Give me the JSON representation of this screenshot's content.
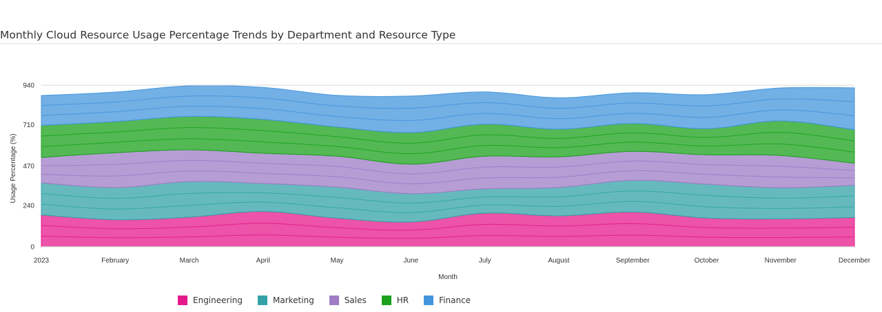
{
  "chart_data": {
    "type": "area",
    "stacked": true,
    "title": "Monthly Cloud Resource Usage Percentage Trends by Department and Resource Type",
    "xlabel": "Month",
    "ylabel": "Usage Percentage (%)",
    "ylim": [
      0,
      940
    ],
    "yticks": [
      0,
      240,
      470,
      710,
      940
    ],
    "categories": [
      "2023",
      "February",
      "March",
      "April",
      "May",
      "June",
      "July",
      "August",
      "September",
      "October",
      "November",
      "December"
    ],
    "grid": false,
    "legend_position": "bottom",
    "series": [
      {
        "name": "Engineering",
        "color": "#e6198c",
        "values": [
          185,
          157,
          172,
          205,
          166,
          144,
          195,
          180,
          202,
          167,
          162,
          170
        ]
      },
      {
        "name": "Marketing",
        "color": "#33a3a8",
        "values": [
          187,
          187,
          207,
          163,
          181,
          165,
          142,
          165,
          184,
          197,
          181,
          188
        ]
      },
      {
        "name": "Sales",
        "color": "#9e7cc6",
        "values": [
          148,
          203,
          185,
          176,
          180,
          172,
          190,
          178,
          169,
          171,
          188,
          128
        ]
      },
      {
        "name": "HR",
        "color": "#1ba11b",
        "values": [
          186,
          181,
          194,
          197,
          170,
          183,
          186,
          161,
          162,
          152,
          201,
          195
        ]
      },
      {
        "name": "Finance",
        "color": "#4495dd",
        "values": [
          174,
          172,
          178,
          186,
          184,
          213,
          188,
          183,
          179,
          198,
          192,
          244
        ]
      }
    ]
  }
}
